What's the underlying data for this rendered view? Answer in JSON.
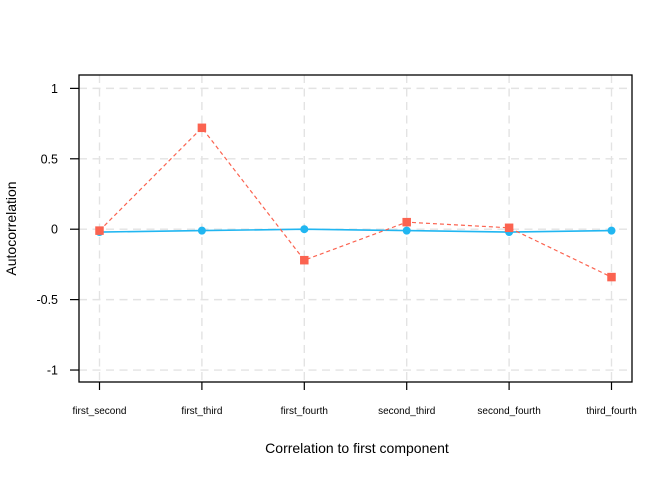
{
  "chart_data": {
    "type": "line",
    "title": "",
    "xlabel": "Correlation to first component",
    "ylabel": "Autocorrelation",
    "categories": [
      "first_second",
      "first_third",
      "first_fourth",
      "second_third",
      "second_fourth",
      "third_fourth"
    ],
    "y_tick_values": [
      1,
      0.5,
      0,
      -0.5,
      -1
    ],
    "y_tick_labels": [
      "1",
      "0.5",
      "0",
      "-0.5",
      "-1"
    ],
    "ylim": [
      -1.085,
      1.095
    ],
    "grid": true,
    "legend_position": "none",
    "background_color": "#ffffff",
    "grid_color": "#e3e3e3",
    "border_color": "#000000",
    "tick_color": "#000000",
    "text_color": "#000000",
    "series": [
      {
        "name": "solid-circle-series",
        "marker": "circle",
        "color": "#21b6f1",
        "linestyle": "solid",
        "values": [
          -0.02,
          -0.01,
          0,
          -0.01,
          -0.02,
          -0.01
        ]
      },
      {
        "name": "dashed-square-series",
        "marker": "square",
        "color": "#fb6350",
        "linestyle": "dashed",
        "values": [
          -0.01,
          0.72,
          -0.22,
          0.05,
          0.01,
          -0.34
        ]
      }
    ]
  }
}
